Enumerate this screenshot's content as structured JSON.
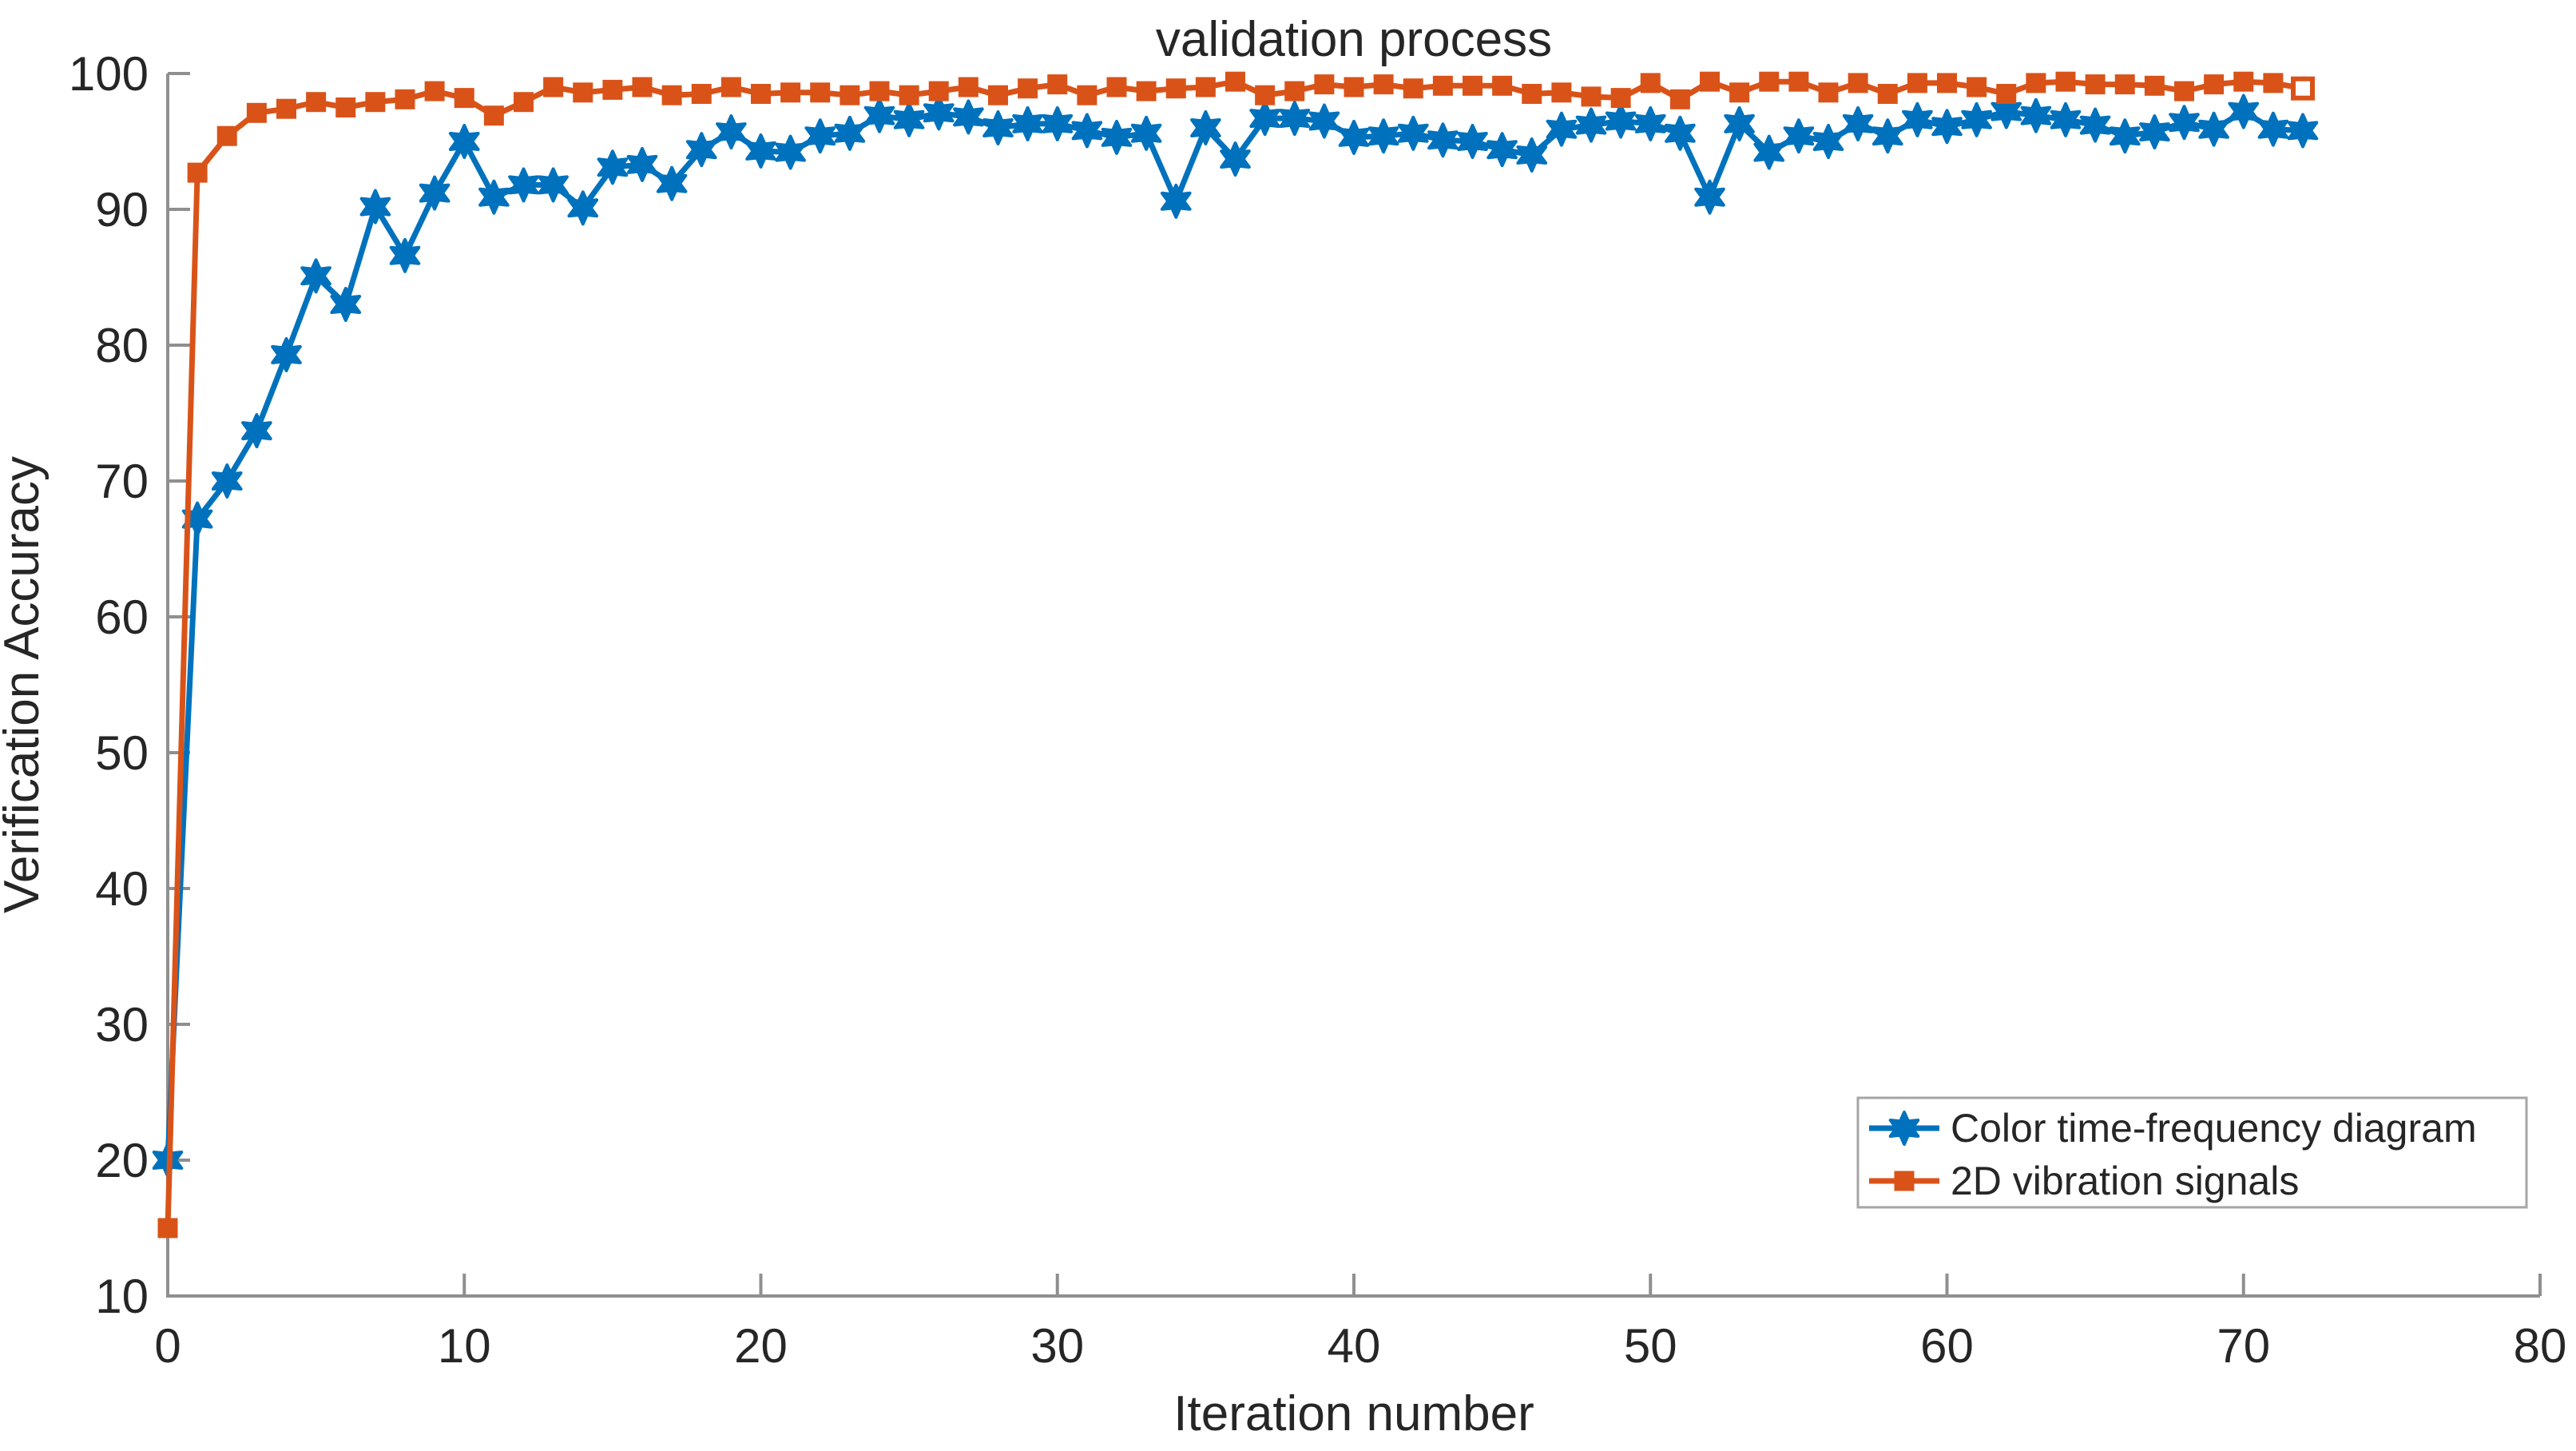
{
  "chart_data": {
    "type": "line",
    "title": "validation process",
    "xlabel": "Iteration number",
    "ylabel": "Verification Accuracy",
    "xlim": [
      0,
      80
    ],
    "ylim": [
      10,
      100
    ],
    "xticks": [
      0,
      10,
      20,
      30,
      40,
      50,
      60,
      70,
      80
    ],
    "yticks": [
      10,
      20,
      30,
      40,
      50,
      60,
      70,
      80,
      90,
      100
    ],
    "grid": "off",
    "legend_position": "bottom-right",
    "axis_color": "#8f8f8f",
    "text_color": "#262626",
    "x_start": 0,
    "x_step": 1,
    "series": [
      {
        "name": "Color time-frequency diagram",
        "color": "#0072BD",
        "marker": "hexagram-star",
        "last_marker_hollow": false,
        "values": [
          20.0,
          67.2,
          70.0,
          73.7,
          79.3,
          85.1,
          83.0,
          90.2,
          86.6,
          91.2,
          95.0,
          90.9,
          91.8,
          91.8,
          90.1,
          93.1,
          93.3,
          91.9,
          94.4,
          95.7,
          94.3,
          94.2,
          95.4,
          95.6,
          96.9,
          96.6,
          97.1,
          96.8,
          96.0,
          96.3,
          96.3,
          95.8,
          95.3,
          95.6,
          90.6,
          96.0,
          93.7,
          96.7,
          96.7,
          96.5,
          95.3,
          95.4,
          95.6,
          95.1,
          95.0,
          94.4,
          94.0,
          95.9,
          96.2,
          96.5,
          96.3,
          95.6,
          90.9,
          96.3,
          94.2,
          95.4,
          95.0,
          96.3,
          95.4,
          96.6,
          96.1,
          96.6,
          97.2,
          96.9,
          96.6,
          96.2,
          95.4,
          95.7,
          96.4,
          95.9,
          97.2,
          95.9,
          95.8
        ]
      },
      {
        "name": "2D vibration signals",
        "color": "#D95319",
        "marker": "square",
        "last_marker_hollow": true,
        "values": [
          15.0,
          92.7,
          95.4,
          97.1,
          97.4,
          97.9,
          97.5,
          97.9,
          98.1,
          98.7,
          98.2,
          96.9,
          97.9,
          99.0,
          98.6,
          98.8,
          99.0,
          98.4,
          98.5,
          99.0,
          98.5,
          98.6,
          98.6,
          98.4,
          98.7,
          98.4,
          98.7,
          99.0,
          98.4,
          98.9,
          99.2,
          98.4,
          99.0,
          98.7,
          98.9,
          99.0,
          99.4,
          98.4,
          98.7,
          99.2,
          99.0,
          99.2,
          98.9,
          99.1,
          99.1,
          99.1,
          98.5,
          98.6,
          98.3,
          98.2,
          99.3,
          98.1,
          99.4,
          98.6,
          99.4,
          99.4,
          98.6,
          99.3,
          98.5,
          99.3,
          99.3,
          99.0,
          98.5,
          99.3,
          99.4,
          99.2,
          99.2,
          99.1,
          98.7,
          99.2,
          99.4,
          99.3,
          98.9
        ]
      }
    ]
  }
}
